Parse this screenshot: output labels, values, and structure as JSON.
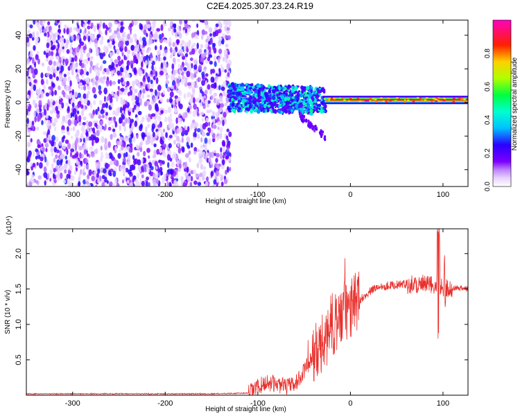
{
  "title": "C2E4.2025.307.23.24.R19",
  "colors": {
    "snr_line": "#e8302c",
    "frame": "#000000"
  },
  "chart_data": [
    {
      "type": "heatmap",
      "xlabel": "Height of straight line (km)",
      "ylabel": "Frequency (Hz)",
      "xlim": [
        -350,
        127
      ],
      "ylim": [
        -50,
        49
      ],
      "xticks": [
        -300,
        -200,
        -100,
        0,
        100
      ],
      "yticks": [
        -40,
        -20,
        0,
        20,
        40
      ],
      "colorbar": {
        "label": "Normalized spectral amplitude",
        "range": [
          0,
          1
        ],
        "ticks": [
          "0.0",
          "0.2",
          "0.4",
          "0.6",
          "0.8"
        ],
        "colormap": "rainbow (white-violet-blue-cyan-green-yellow-red-magenta)"
      },
      "regions": [
        {
          "x_range": [
            -350,
            -130
          ],
          "freq_range": [
            -50,
            49
          ],
          "amplitude": "0.0-0.15 (broadband noise)"
        },
        {
          "x_range": [
            -130,
            -30
          ],
          "freq_range": [
            -8,
            10
          ],
          "amplitude": "0.2-0.5"
        },
        {
          "x_range": [
            -55,
            -25
          ],
          "freq_range": [
            -20,
            -5
          ],
          "amplitude": "0.1-0.2"
        },
        {
          "x_range": [
            -30,
            127
          ],
          "freq_range": [
            -1,
            4
          ],
          "amplitude": "0.6-0.95"
        }
      ]
    },
    {
      "type": "line",
      "xlabel": "Height of straight line (km)",
      "ylabel": "SNR (10 * v/v)",
      "y_multiplier": "(x10⁴)",
      "xlim": [
        -350,
        127
      ],
      "ylim": [
        0,
        2.35
      ],
      "xticks": [
        -300,
        -200,
        -100,
        0,
        100
      ],
      "yticks": [
        0.5,
        1.0,
        1.5,
        2.0
      ],
      "series": [
        {
          "x": [
            -350,
            -300,
            -250,
            -200,
            -150,
            -110,
            -100,
            -90,
            -80,
            -70,
            -60,
            -55,
            -50,
            -45,
            -40,
            -35,
            -30,
            -25,
            -20,
            -15,
            -10,
            -5,
            0,
            5,
            10,
            15,
            20,
            25,
            30,
            40,
            50,
            60,
            70,
            80,
            90,
            95,
            100,
            110,
            120,
            127
          ],
          "y": [
            0.02,
            0.02,
            0.02,
            0.02,
            0.02,
            0.03,
            0.12,
            0.18,
            0.16,
            0.12,
            0.15,
            0.25,
            0.35,
            0.45,
            0.55,
            0.6,
            0.7,
            0.85,
            1.0,
            1.05,
            1.1,
            1.2,
            1.2,
            1.3,
            1.35,
            1.4,
            1.45,
            1.5,
            1.53,
            1.55,
            1.56,
            1.57,
            1.57,
            1.56,
            1.55,
            1.57,
            1.53,
            1.52,
            1.51,
            1.5
          ]
        }
      ]
    }
  ]
}
